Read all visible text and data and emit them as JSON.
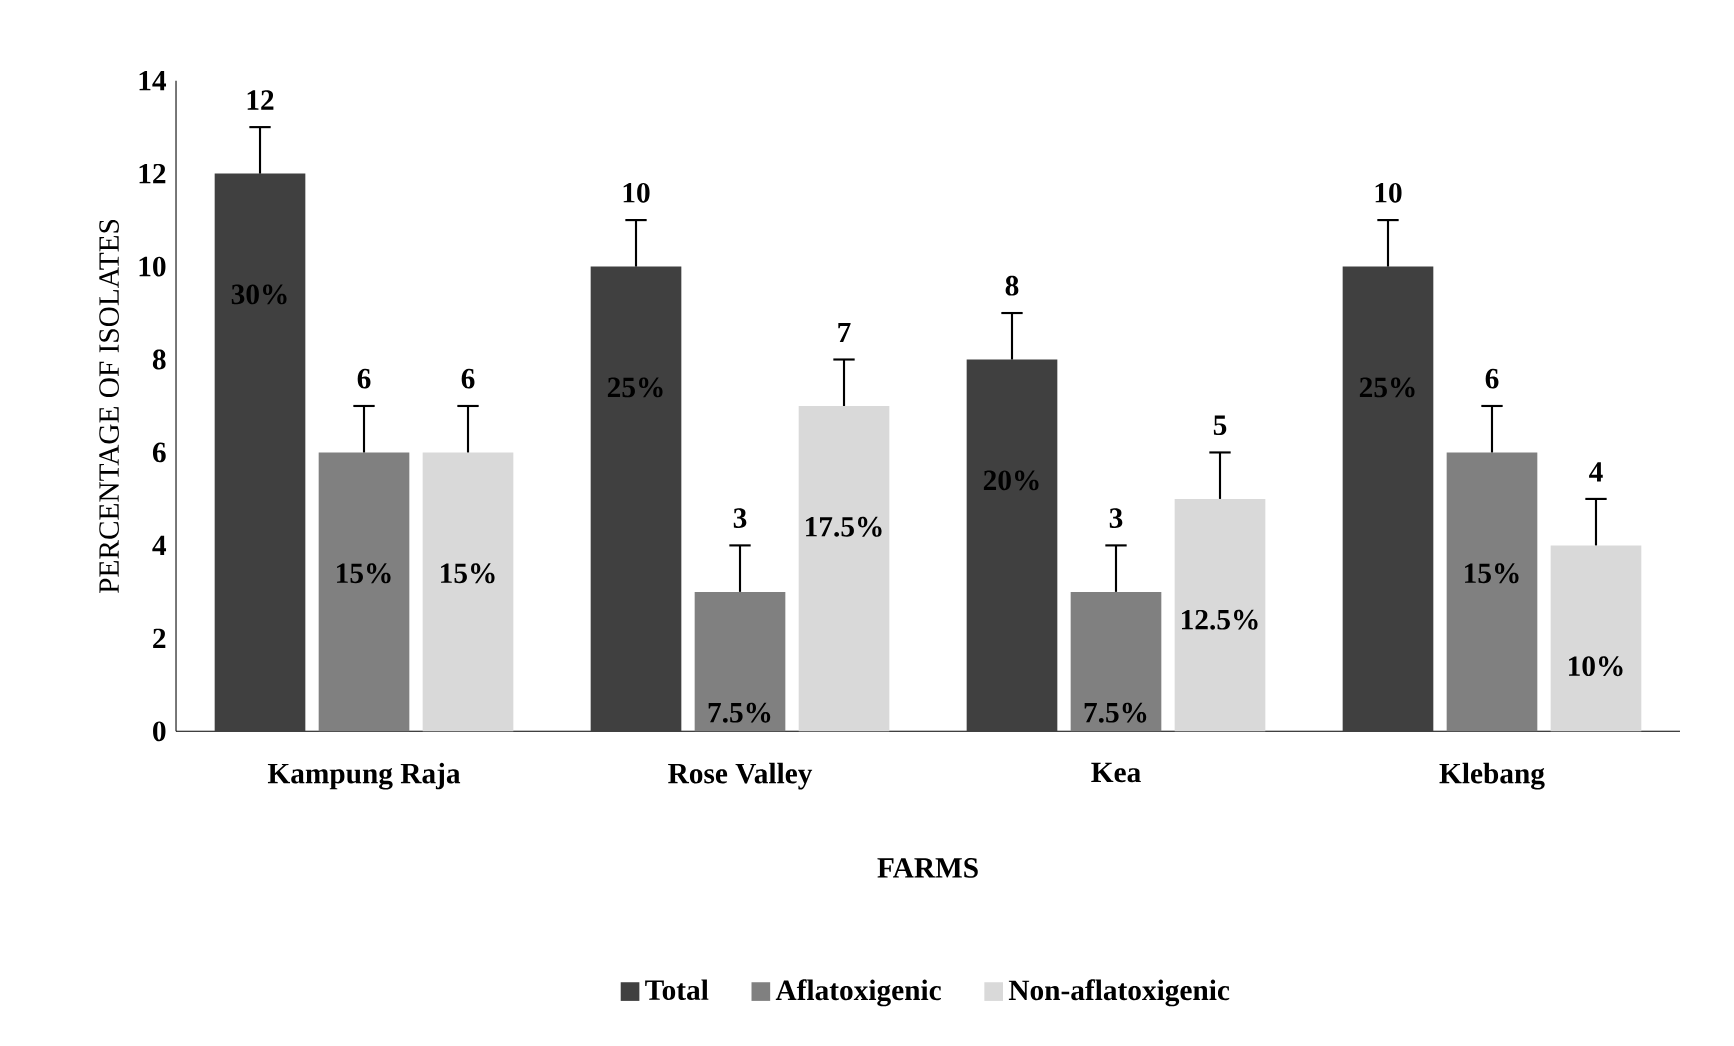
{
  "chart_data": {
    "type": "bar",
    "xlabel": "FARMS",
    "ylabel": "PERCENTAGE OF ISOLATES",
    "categories": [
      "Kampung Raja",
      "Rose Valley",
      "Kea",
      "Klebang"
    ],
    "series": [
      {
        "name": "Total",
        "color": "#404040",
        "values": [
          12,
          10,
          8,
          10
        ],
        "errors": [
          [
            12,
            13
          ],
          [
            10,
            11
          ],
          [
            8,
            9
          ],
          [
            10,
            11
          ]
        ]
      },
      {
        "name": "Aflatoxigenic",
        "color": "#808080",
        "values": [
          6,
          3,
          3,
          6
        ],
        "errors": [
          [
            6,
            7
          ],
          [
            3,
            4
          ],
          [
            3,
            4
          ],
          [
            6,
            7
          ]
        ]
      },
      {
        "name": "Non-aflatoxigenic",
        "color": "#d9d9d9",
        "values": [
          6,
          7,
          5,
          4
        ],
        "errors": [
          [
            6,
            7
          ],
          [
            7,
            8
          ],
          [
            5,
            6
          ],
          [
            4,
            5
          ]
        ]
      }
    ],
    "annotations": [
      "30%",
      "15%",
      "15%",
      "25%",
      "7.5%",
      "17.5%",
      "20%",
      "7.5%",
      "12.5%",
      "25%",
      "15%",
      "10%"
    ],
    "ylim": [
      0,
      14
    ],
    "yticks": [
      0,
      2,
      4,
      6,
      8,
      10,
      12,
      14
    ],
    "grid": false,
    "legend": "bottom",
    "data_labels": true
  }
}
